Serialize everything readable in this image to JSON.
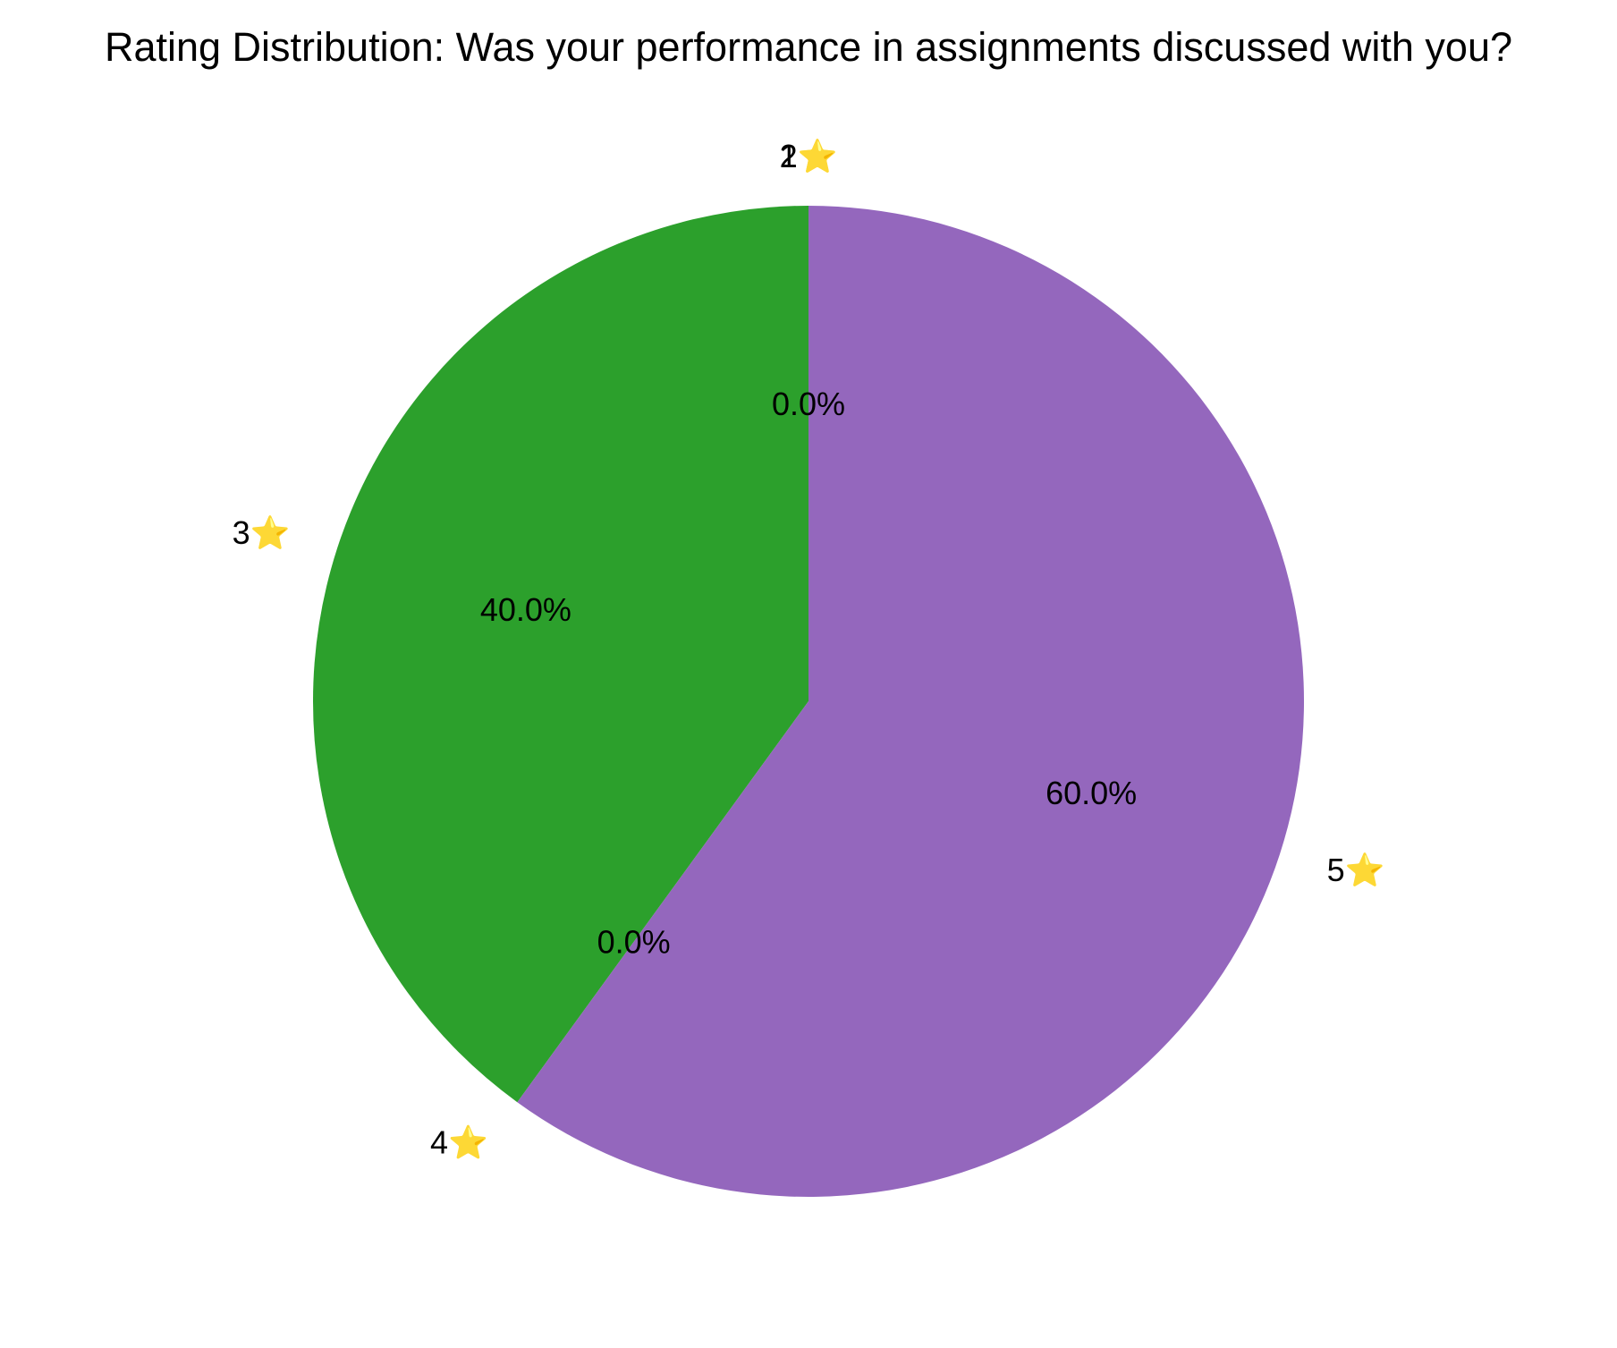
{
  "chart_data": {
    "type": "pie",
    "title": "Rating Distribution: Was your performance in assignments discussed with you?",
    "categories": [
      "1⭐",
      "2⭐",
      "3⭐",
      "4⭐",
      "5⭐"
    ],
    "values": [
      0.0,
      0.0,
      40.0,
      0.0,
      60.0
    ],
    "value_labels": [
      "0.0%",
      "0.0%",
      "40.0%",
      "0.0%",
      "60.0%"
    ],
    "value_labels_shown": [
      false,
      true,
      true,
      true,
      true
    ],
    "colors": [
      "#1f77b4",
      "#ff7f0e",
      "#2ca02c",
      "#d62728",
      "#9467bd"
    ],
    "start_angle": "90 degrees (top)",
    "direction": "counterclockwise",
    "legend": "none"
  }
}
